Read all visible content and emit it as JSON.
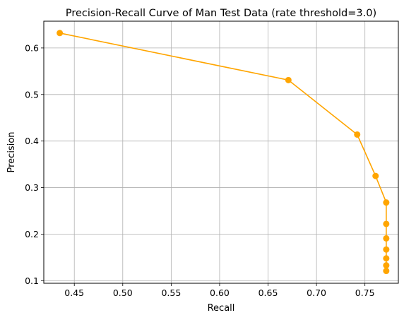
{
  "chart_data": {
    "type": "line",
    "title": "Precision-Recall Curve of Man Test Data (rate threshold=3.0)",
    "xlabel": "Recall",
    "ylabel": "Precision",
    "xlim": [
      0.4185,
      0.7845
    ],
    "ylim": [
      0.0945,
      0.6575
    ],
    "xticks": [
      0.45,
      0.5,
      0.55,
      0.6,
      0.65,
      0.7,
      0.75
    ],
    "yticks": [
      0.1,
      0.2,
      0.3,
      0.4,
      0.5,
      0.6
    ],
    "grid": true,
    "color": "#ffa500",
    "marker": "circle",
    "series": [
      {
        "x": [
          0.435,
          0.671,
          0.742,
          0.761,
          0.772,
          0.772,
          0.772,
          0.772,
          0.772,
          0.772,
          0.772
        ],
        "y": [
          0.632,
          0.531,
          0.414,
          0.325,
          0.268,
          0.222,
          0.191,
          0.167,
          0.148,
          0.133,
          0.121
        ]
      }
    ]
  }
}
